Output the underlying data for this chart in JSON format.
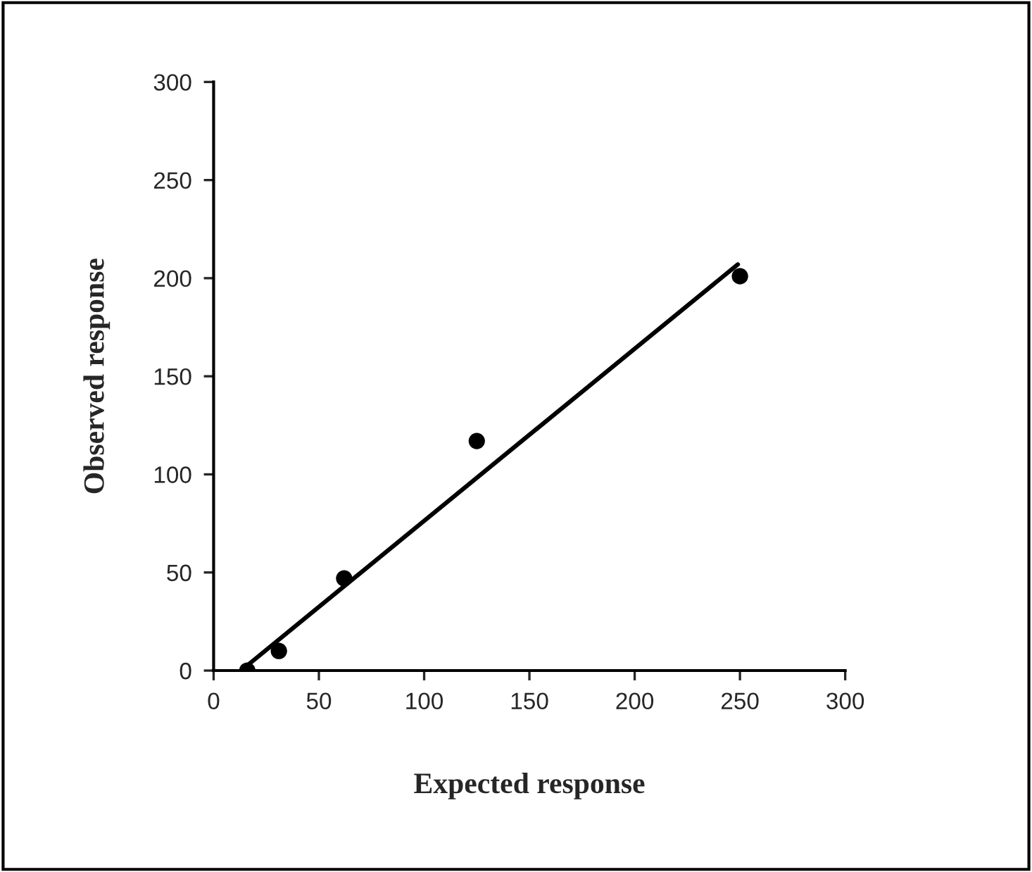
{
  "chart_data": {
    "type": "scatter",
    "xlabel": "Expected response",
    "ylabel": "Observed response",
    "series": [
      {
        "color": "#000000",
        "marker": "circle",
        "x": [
          16,
          31,
          62,
          125,
          250
        ],
        "values": [
          0,
          10,
          47,
          117,
          201
        ]
      },
      {
        "type": "line",
        "color": "#000000",
        "marker": "none",
        "line_style": "solid",
        "x": [
          13,
          249
        ],
        "values": [
          0,
          207
        ]
      }
    ],
    "xlim": [
      0,
      300
    ],
    "ylim": [
      0,
      300
    ],
    "xticks": [
      0,
      50,
      100,
      150,
      200,
      250,
      300
    ],
    "yticks": [
      0,
      50,
      100,
      150,
      200,
      250,
      300
    ],
    "grid": false,
    "legend": false
  }
}
